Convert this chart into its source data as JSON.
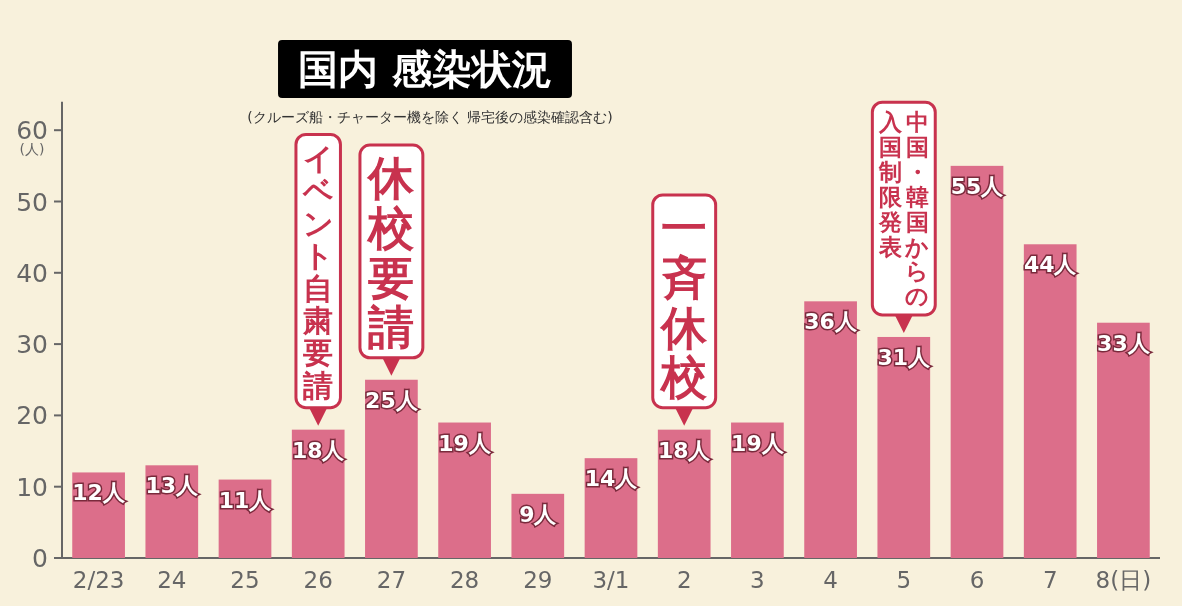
{
  "chart_data": {
    "type": "bar",
    "title": "国内 感染状況",
    "subtitle": "(クルーズ船・チャーター機を除く 帰宅後の感染確認含む)",
    "ylabel": "(人)",
    "categories": [
      "2/23",
      "24",
      "25",
      "26",
      "27",
      "28",
      "29",
      "3/1",
      "2",
      "3",
      "4",
      "5",
      "6",
      "7",
      "8(日)"
    ],
    "values": [
      12,
      13,
      11,
      18,
      25,
      19,
      9,
      14,
      18,
      19,
      36,
      31,
      55,
      44,
      33
    ],
    "value_labels": [
      "12人",
      "13人",
      "11人",
      "18人",
      "25人",
      "19人",
      "9人",
      "14人",
      "18人",
      "19人",
      "36人",
      "31人",
      "55人",
      "44人",
      "33人"
    ],
    "color": "#dc6e8a",
    "ylim": [
      0,
      64
    ],
    "yticks": [
      0,
      10,
      20,
      30,
      40,
      50,
      60
    ],
    "grid": false,
    "annotations": [
      {
        "text": "イベント自粛要請",
        "x": "26",
        "y": 18
      },
      {
        "text": "休校要請",
        "x": "27",
        "y": 25
      },
      {
        "text": "一斉休校",
        "x": "2",
        "y": 18
      },
      {
        "text": "中国・韓国からの",
        "x": "5",
        "y": 31
      },
      "入国制限発表"
    ]
  }
}
